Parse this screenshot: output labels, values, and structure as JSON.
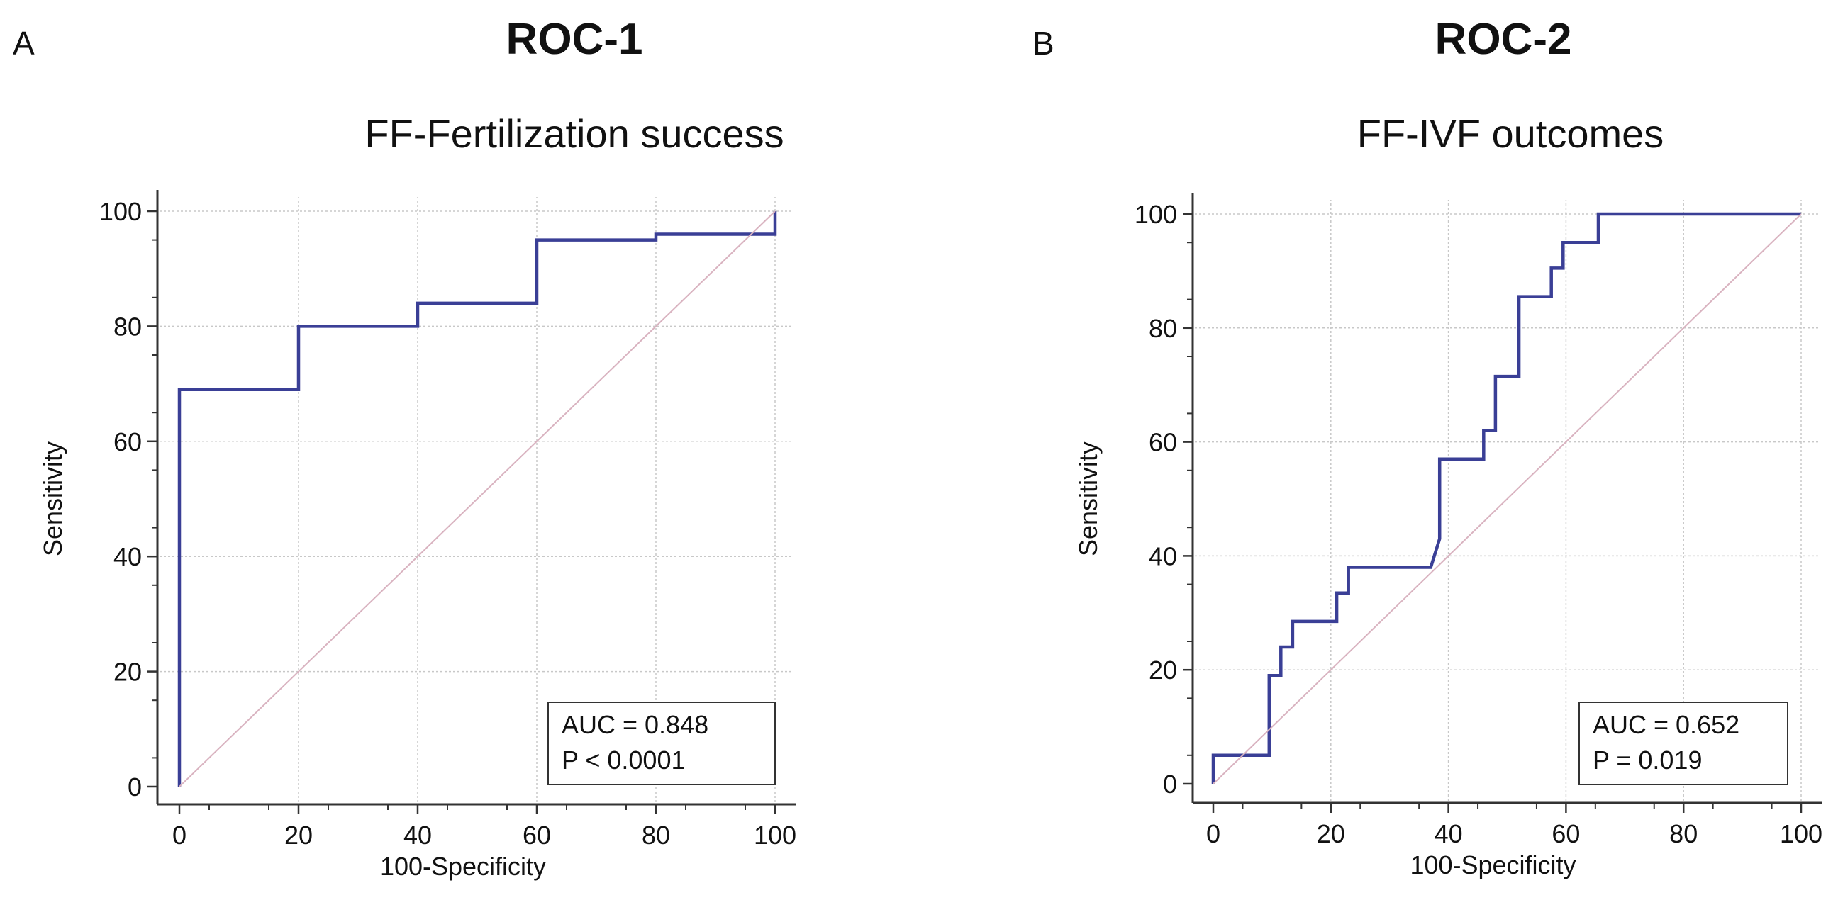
{
  "panels": {
    "A": {
      "letter": "A",
      "title": "ROC-1"
    },
    "B": {
      "letter": "B",
      "title": "ROC-2"
    }
  },
  "colors": {
    "roc": "#3a3f96",
    "diagonal": "#d9b3c0",
    "grid": "#c8c8c8",
    "axis": "#333333"
  },
  "chart_data": [
    {
      "type": "line",
      "title": "FF-Fertilization success",
      "xlabel": "100-Specificity",
      "ylabel": "Sensitivity",
      "xlim": [
        0,
        100
      ],
      "ylim": [
        0,
        100
      ],
      "xticks": [
        0,
        20,
        40,
        60,
        80,
        100
      ],
      "yticks": [
        0,
        20,
        40,
        60,
        80,
        100
      ],
      "grid": true,
      "legend_position": "bottom-right",
      "annotation": {
        "auc": "AUC = 0.848",
        "p": "P < 0.0001"
      },
      "series": [
        {
          "name": "ROC",
          "x": [
            0,
            0,
            20,
            20,
            40,
            40,
            60,
            60,
            80,
            80,
            100,
            100
          ],
          "y": [
            0,
            69,
            69,
            80,
            80,
            84,
            84,
            95,
            95,
            96,
            96,
            100
          ]
        },
        {
          "name": "reference",
          "x": [
            0,
            100
          ],
          "y": [
            0,
            100
          ]
        }
      ]
    },
    {
      "type": "line",
      "title": "FF-IVF outcomes",
      "xlabel": "100-Specificity",
      "ylabel": "Sensitivity",
      "xlim": [
        0,
        100
      ],
      "ylim": [
        0,
        100
      ],
      "xticks": [
        0,
        20,
        40,
        60,
        80,
        100
      ],
      "yticks": [
        0,
        20,
        40,
        60,
        80,
        100
      ],
      "grid": true,
      "legend_position": "bottom-right",
      "annotation": {
        "auc": "AUC = 0.652",
        "p": "P = 0.019"
      },
      "series": [
        {
          "name": "ROC",
          "x": [
            0,
            0,
            9.5,
            9.5,
            11.5,
            11.5,
            13.5,
            13.5,
            21,
            21,
            23,
            23,
            37,
            38.5,
            38.5,
            46,
            46,
            48,
            48,
            52,
            52,
            57.5,
            57.5,
            59.5,
            59.5,
            65.5,
            65.5,
            100
          ],
          "y": [
            0,
            5,
            5,
            19,
            19,
            24,
            24,
            28.5,
            28.5,
            33.5,
            33.5,
            38,
            38,
            43,
            57,
            57,
            62,
            62,
            71.5,
            71.5,
            85.5,
            85.5,
            90.5,
            90.5,
            95,
            95,
            100,
            100
          ]
        },
        {
          "name": "reference",
          "x": [
            0,
            100
          ],
          "y": [
            0,
            100
          ]
        }
      ]
    }
  ]
}
